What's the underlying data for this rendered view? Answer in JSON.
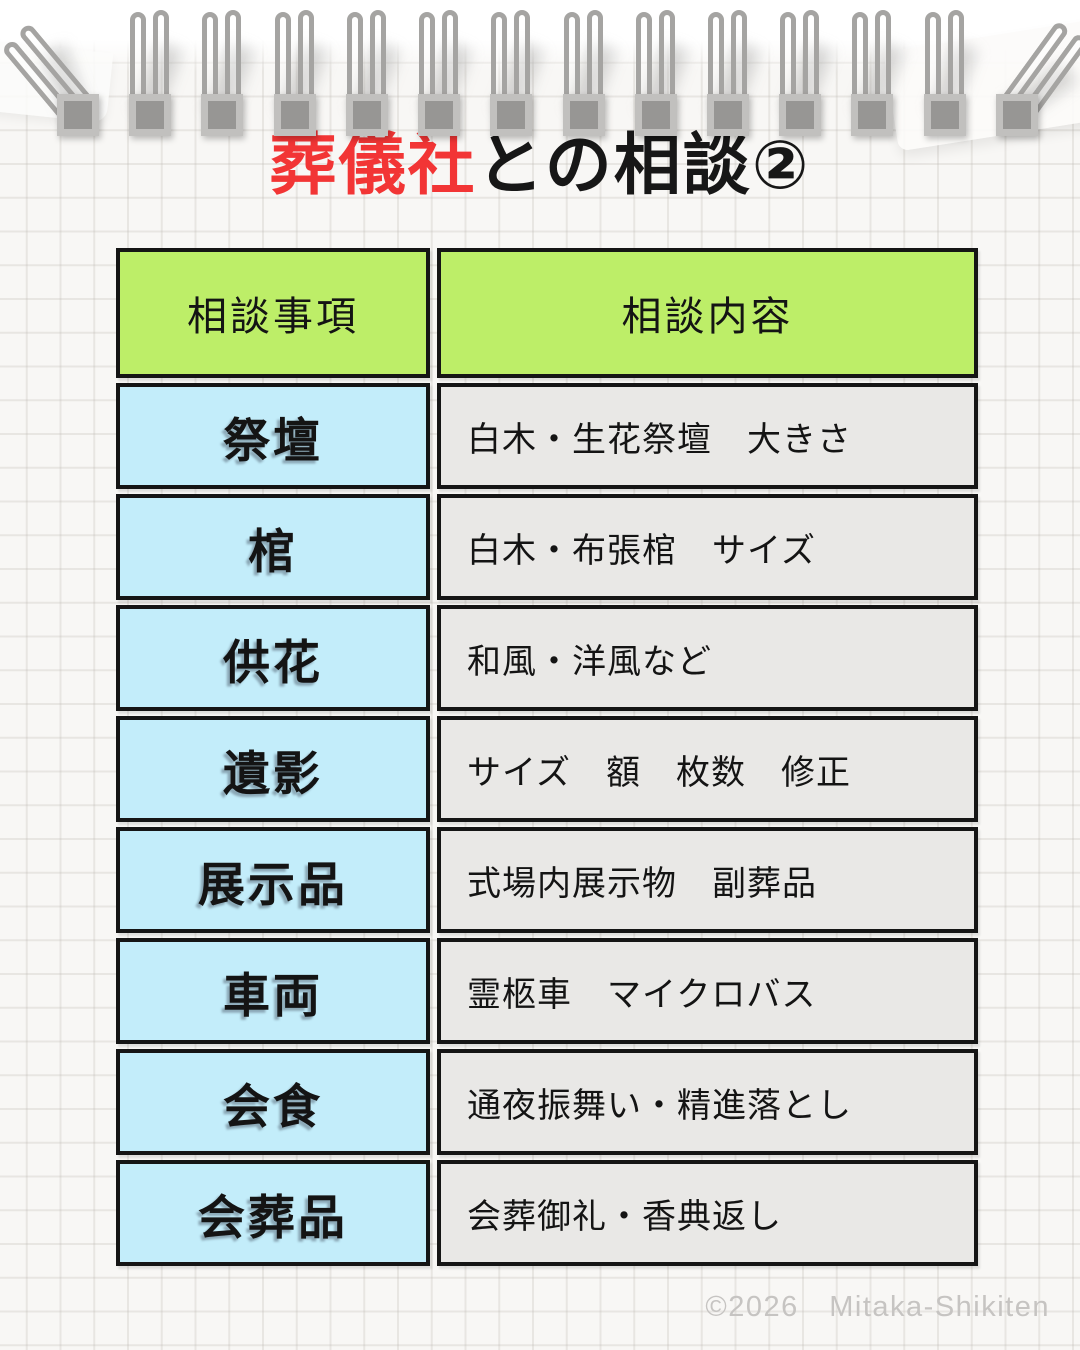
{
  "page": {
    "title": {
      "highlight": "葬儀社",
      "rest": "との相談②"
    },
    "footer": "©2026　Mitaka-Shikiten"
  },
  "table": {
    "headers": [
      "相談事項",
      "相談内容"
    ],
    "rows": [
      {
        "item": "祭壇",
        "detail": "白木・生花祭壇　大きさ"
      },
      {
        "item": "棺",
        "detail": "白木・布張棺　サイズ"
      },
      {
        "item": "供花",
        "detail": "和風・洋風など"
      },
      {
        "item": "遺影",
        "detail": "サイズ　額　枚数　修正"
      },
      {
        "item": "展示品",
        "detail": "式場内展示物　副葬品"
      },
      {
        "item": "車両",
        "detail": "霊柩車　マイクロバス"
      },
      {
        "item": "会食",
        "detail": "通夜振舞い・精進落とし"
      },
      {
        "item": "会葬品",
        "detail": "会葬御礼・香典返し"
      }
    ],
    "colors": {
      "header_bg": "#bdee68",
      "item_bg": "#c3edfa",
      "detail_bg": "#e9e8e6",
      "cell_border": "#151515",
      "title_accent": "#f23535",
      "footer_text": "#c6c4c2"
    }
  },
  "decor": {
    "binding_count": 14
  }
}
